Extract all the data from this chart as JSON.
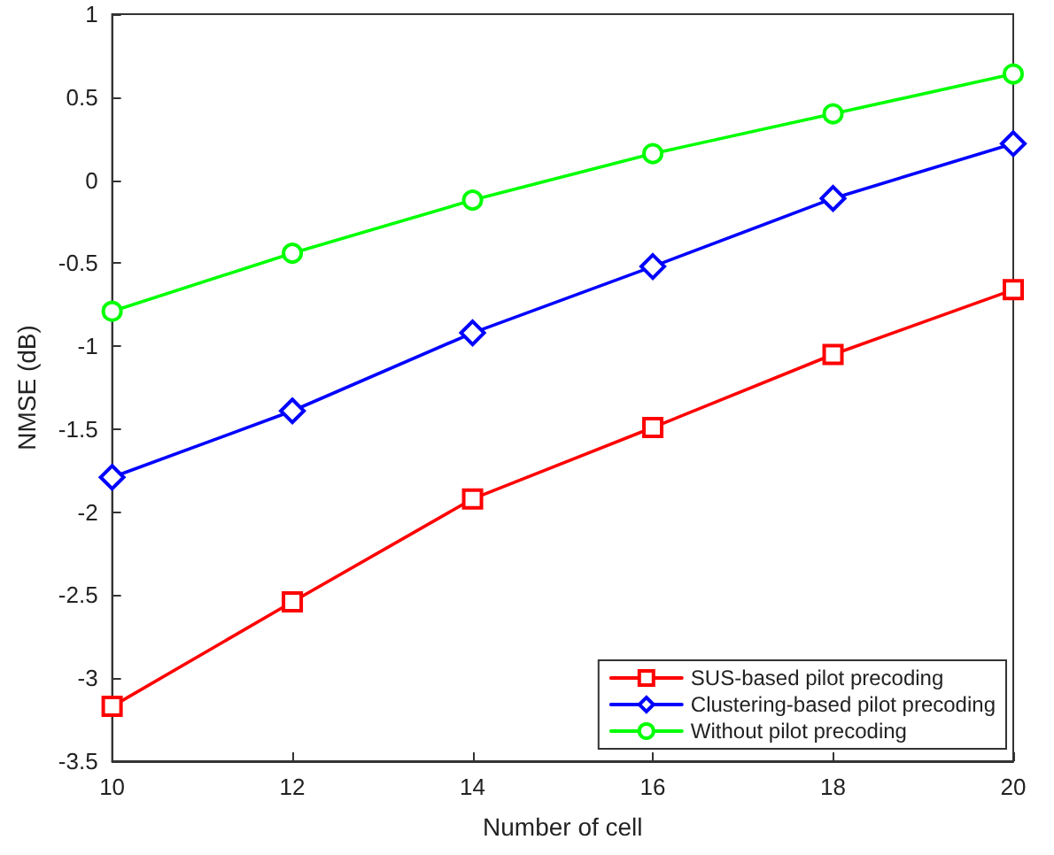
{
  "chart_data": {
    "type": "line",
    "xlabel": "Number of cell",
    "ylabel": "NMSE (dB)",
    "x": [
      10,
      12,
      14,
      16,
      18,
      20
    ],
    "xlim": [
      10,
      20
    ],
    "xticks": [
      10,
      12,
      14,
      16,
      18,
      20
    ],
    "ylim": [
      -3.5,
      1
    ],
    "yticks": [
      -3.5,
      -3,
      -2.5,
      -2,
      -1.5,
      -1,
      -0.5,
      0,
      0.5,
      1
    ],
    "grid": false,
    "legend": "bottom right",
    "line_style": "solid",
    "series": [
      {
        "name": "SUS-based pilot precoding",
        "color": "#ff0000",
        "marker": "square",
        "values": [
          -3.17,
          -2.54,
          -1.92,
          -1.49,
          -1.05,
          -0.66
        ]
      },
      {
        "name": "Clustering-based pilot precoding",
        "color": "#0000ff",
        "marker": "diamond",
        "values": [
          -1.79,
          -1.39,
          -0.92,
          -0.52,
          -0.11,
          0.22
        ]
      },
      {
        "name": "Without pilot precoding",
        "color": "#00ff00",
        "marker": "circle",
        "values": [
          -0.79,
          -0.44,
          -0.12,
          0.16,
          0.4,
          0.64
        ]
      }
    ]
  }
}
